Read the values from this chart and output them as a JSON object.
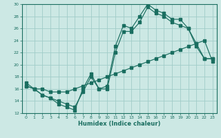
{
  "xlabel": "Humidex (Indice chaleur)",
  "ylabel": "",
  "background_color": "#cce8e4",
  "grid_color": "#a0ccc8",
  "line_color": "#1a6e60",
  "xlim": [
    -0.5,
    23.5
  ],
  "ylim": [
    12,
    30
  ],
  "xticks": [
    0,
    1,
    2,
    3,
    4,
    5,
    6,
    7,
    8,
    9,
    10,
    11,
    12,
    13,
    14,
    15,
    16,
    17,
    18,
    19,
    20,
    21,
    22,
    23
  ],
  "yticks": [
    12,
    14,
    16,
    18,
    20,
    22,
    24,
    26,
    28,
    30
  ],
  "line1_x": [
    0,
    1,
    2,
    3,
    4,
    5,
    6,
    7,
    8,
    9,
    10,
    11,
    12,
    13,
    14,
    15,
    16,
    17,
    18,
    19,
    20,
    21,
    22,
    23
  ],
  "line1_y": [
    17,
    16,
    15,
    14.5,
    13.5,
    13,
    12.5,
    16,
    18.5,
    16,
    16.5,
    23,
    26.5,
    26,
    28,
    30,
    29,
    28.5,
    27.5,
    27.5,
    26,
    23.5,
    21,
    21
  ],
  "line2_x": [
    0,
    1,
    2,
    3,
    4,
    5,
    6,
    7,
    8,
    9,
    10,
    11,
    12,
    13,
    14,
    15,
    16,
    17,
    18,
    19,
    20,
    21,
    22,
    23
  ],
  "line2_y": [
    16.5,
    16,
    16,
    15.5,
    15.5,
    15.5,
    16,
    16.5,
    17,
    17.5,
    18,
    18.5,
    19,
    19.5,
    20,
    20.5,
    21,
    21.5,
    22,
    22.5,
    23,
    23.5,
    24,
    20.5
  ],
  "line3_x": [
    0,
    1,
    2,
    3,
    4,
    5,
    6,
    7,
    8,
    9,
    10,
    11,
    12,
    13,
    14,
    15,
    16,
    17,
    18,
    19,
    20,
    21,
    22,
    23
  ],
  "line3_y": [
    16.5,
    16,
    15,
    14.5,
    14,
    13.5,
    13,
    15.5,
    18,
    16,
    16,
    22,
    25.5,
    25.5,
    27,
    29.5,
    28.5,
    28,
    27,
    26.5,
    26,
    23,
    21,
    21
  ]
}
